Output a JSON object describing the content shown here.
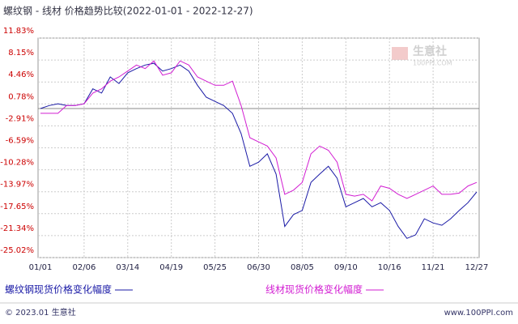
{
  "chart_data": {
    "type": "line",
    "title": "螺纹钢 - 线材 价格趋势比较(2022-01-01 - 2022-12-27)",
    "xticks": [
      "01/01",
      "02/06",
      "03/14",
      "04/19",
      "05/25",
      "06/30",
      "08/05",
      "09/10",
      "10/16",
      "11/21",
      "12/27"
    ],
    "ylim": [
      -25.02,
      11.83
    ],
    "yticks": [
      {
        "value": 11.83,
        "label": "11.83%"
      },
      {
        "value": 8.15,
        "label": "8.15%"
      },
      {
        "value": 4.46,
        "label": "4.46%"
      },
      {
        "value": 0.78,
        "label": "0.78%"
      },
      {
        "value": -2.91,
        "label": "-2.91%"
      },
      {
        "value": -6.59,
        "label": "-6.59%"
      },
      {
        "value": -10.28,
        "label": "-10.28%"
      },
      {
        "value": -13.97,
        "label": "-13.97%"
      },
      {
        "value": -17.65,
        "label": "-17.65%"
      },
      {
        "value": -21.34,
        "label": "-21.34%"
      },
      {
        "value": -25.02,
        "label": "-25.02%"
      }
    ],
    "grid": true,
    "series": [
      {
        "name": "螺纹钢现货价格变化幅度",
        "color": "#1a1aa6",
        "values": [
          0.0,
          0.5,
          0.8,
          0.5,
          0.5,
          0.8,
          3.3,
          2.6,
          5.3,
          4.2,
          6.0,
          6.7,
          7.3,
          7.6,
          6.3,
          6.7,
          7.3,
          6.3,
          3.9,
          1.9,
          1.2,
          0.5,
          -0.8,
          -4.2,
          -9.7,
          -9.0,
          -7.6,
          -11.0,
          -19.8,
          -17.8,
          -17.1,
          -12.4,
          -11.0,
          -9.7,
          -11.7,
          -16.5,
          -15.8,
          -15.1,
          -16.5,
          -15.8,
          -17.1,
          -19.8,
          -21.8,
          -21.2,
          -18.5,
          -19.2,
          -19.6,
          -18.5,
          -17.1,
          -15.8,
          -14.0
        ]
      },
      {
        "name": "线材现货价格变化幅度",
        "color": "#d21ed2",
        "values": [
          -0.8,
          -0.8,
          -0.8,
          0.5,
          0.5,
          0.8,
          2.6,
          3.3,
          4.6,
          5.3,
          6.3,
          7.3,
          6.7,
          8.0,
          5.6,
          6.0,
          8.0,
          7.3,
          5.3,
          4.6,
          3.9,
          3.9,
          4.6,
          0.5,
          -4.9,
          -5.6,
          -6.3,
          -8.3,
          -14.4,
          -13.7,
          -12.4,
          -7.6,
          -6.3,
          -7.0,
          -9.0,
          -14.4,
          -14.7,
          -14.4,
          -15.5,
          -13.0,
          -13.4,
          -14.4,
          -15.1,
          -14.4,
          -13.7,
          -13.0,
          -14.4,
          -14.4,
          -14.2,
          -13.0,
          -12.4
        ]
      }
    ]
  },
  "watermark": {
    "name": "生意社",
    "site": "100PPI.COM"
  },
  "footer": {
    "left": "© 2023.01 生意社",
    "right": "www.100PPI.com"
  }
}
